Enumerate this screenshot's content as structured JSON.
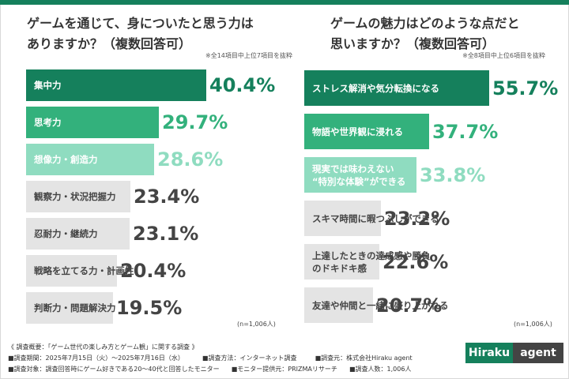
{
  "colors": {
    "c0": "#15805c",
    "c1": "#33b17c",
    "c2": "#8fdcc0",
    "c3": "#e4e4e4"
  },
  "left": {
    "title_line1": "ゲームを通じて、身についたと思う力は",
    "title_line2": "ありますか？（複数回答可）",
    "note": "※全14項目中上位7項目を抜粋",
    "n_label": "(n=1,006人)"
  },
  "right": {
    "title_line1": "ゲームの魅力はどのような点だと",
    "title_line2": "思いますか？（複数回答可）",
    "note": "※全8項目中上位6項目を抜粋",
    "n_label": "(n=1,006人)"
  },
  "chart_data": [
    {
      "type": "bar",
      "orientation": "horizontal",
      "title": "ゲームを通じて、身についたと思う力はありますか？（複数回答可）",
      "unit": "%",
      "categories": [
        "集中力",
        "思考力",
        "想像力・創造力",
        "観察力・状況把握力",
        "忍耐力・継続力",
        "戦略を立てる力・計画性",
        "判断力・問題解決力"
      ],
      "values": [
        40.4,
        29.7,
        28.6,
        23.4,
        23.1,
        20.4,
        19.5
      ],
      "value_labels": [
        "40.4%",
        "29.7%",
        "28.6%",
        "23.4%",
        "23.1%",
        "20.4%",
        "19.5%"
      ]
    },
    {
      "type": "bar",
      "orientation": "horizontal",
      "title": "ゲームの魅力はどのような点だと思いますか？（複数回答可）",
      "unit": "%",
      "categories": [
        "ストレス解消や気分転換になる",
        "物語や世界観に浸れる",
        "現実では味わえない\n“特別な体験”ができる",
        "スキマ時間に暇つぶしができる",
        "上達したときの達成感や勝負\nのドキドキ感",
        "友達や仲間と一緒に盛り上がれる"
      ],
      "values": [
        55.7,
        37.7,
        33.8,
        23.2,
        22.6,
        20.7
      ],
      "value_labels": [
        "55.7%",
        "37.7%",
        "33.8%",
        "23.2%",
        "22.6%",
        "20.7%"
      ]
    }
  ],
  "footer": {
    "line1": "《 調査概要：「ゲーム世代の楽しみ方とゲーム観」に関する調査 》",
    "period": "■調査期間：2025年7月15日（火）〜2025年7月16日（水）",
    "method": "■調査方法：インターネット調査",
    "source": "■調査元：株式会社Hiraku agent",
    "target": "■調査対象：調査回答時にゲーム好きである20〜40代と回答したモニター",
    "provider": "■モニター提供元：PRIZMAリサーチ",
    "count": "■調査人数：1,006人"
  },
  "logo": {
    "part1": "Hiraku",
    "part2": "agent"
  }
}
